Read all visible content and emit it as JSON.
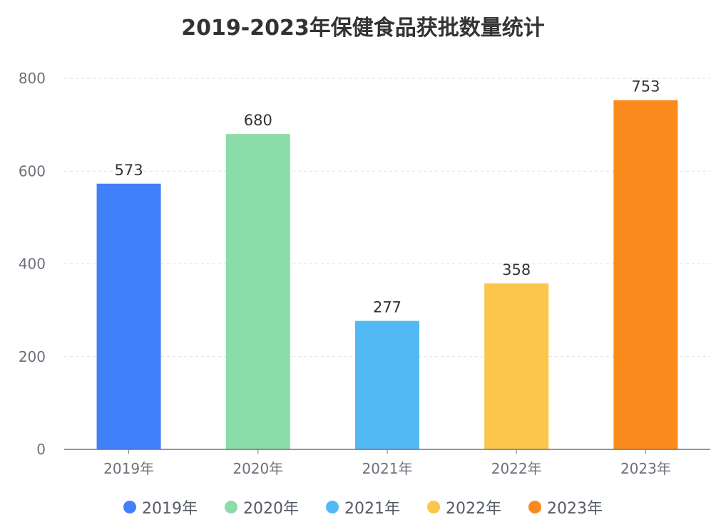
{
  "chart_data": {
    "type": "bar",
    "title": "2019-2023年保健食品获批数量统计",
    "categories": [
      "2019年",
      "2020年",
      "2021年",
      "2022年",
      "2023年"
    ],
    "values": [
      573,
      680,
      277,
      358,
      753
    ],
    "colors": [
      "#4080f8",
      "#8adca8",
      "#52b9f4",
      "#fcc64c",
      "#fb8a1c"
    ],
    "data_labels": [
      "573",
      "680",
      "277",
      "358",
      "753"
    ],
    "ylim": [
      0,
      800
    ],
    "yticks": [
      0,
      200,
      400,
      600,
      800
    ],
    "ytick_labels": [
      "0",
      "200",
      "400",
      "600",
      "800"
    ],
    "xlabel": "",
    "ylabel": "",
    "grid": "horizontal-dashed",
    "legend": {
      "position": "bottom",
      "entries": [
        "2019年",
        "2020年",
        "2021年",
        "2022年",
        "2023年"
      ]
    }
  }
}
